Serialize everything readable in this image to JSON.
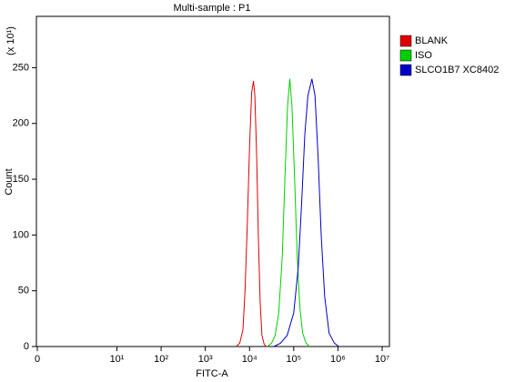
{
  "chart_data": {
    "type": "line",
    "title": "Multi-sample : P1",
    "x_label": "FITC-A",
    "y_label": "Count",
    "y_multiplier": "(x 10¹)",
    "xscale": "asinh",
    "xlim": [
      0,
      10000000
    ],
    "xticks": [
      0,
      {
        "value": 10,
        "label": "10¹"
      },
      {
        "value": 100,
        "label": "10²"
      },
      {
        "value": 1000,
        "label": "10³"
      },
      {
        "value": 10000,
        "label": "10⁴"
      },
      {
        "value": 100000,
        "label": "10⁵"
      },
      {
        "value": 1000000,
        "label": "10⁶"
      },
      {
        "value": 10000000,
        "label": "10⁷"
      }
    ],
    "ylim": [
      0,
      296
    ],
    "yticks": [
      0,
      50,
      100,
      150,
      200,
      250
    ],
    "legend": "right",
    "series": [
      {
        "name": "BLANK",
        "color": "#e00000",
        "x": [
          5000,
          6000,
          7100,
          7900,
          8900,
          10000,
          11200,
          12300,
          13200,
          14500,
          15800,
          17400,
          19100,
          21400,
          24000
        ],
        "values": [
          0,
          3,
          15,
          50,
          110,
          180,
          228,
          238,
          225,
          170,
          100,
          40,
          10,
          2,
          0
        ]
      },
      {
        "name": "ISO",
        "color": "#00d000",
        "x": [
          25100,
          31600,
          38000,
          45700,
          55000,
          63100,
          72400,
          81300,
          91200,
          104700,
          120200,
          138000,
          158500,
          190500,
          229100
        ],
        "values": [
          0,
          3,
          10,
          30,
          80,
          150,
          215,
          240,
          215,
          150,
          80,
          35,
          12,
          3,
          0
        ]
      },
      {
        "name": "SLCO1B7 XC8402",
        "color": "#0000c8",
        "x": [
          35500,
          50100,
          70800,
          100000,
          125900,
          151400,
          177800,
          208900,
          257000,
          302000,
          354800,
          416900,
          501200,
          631000,
          831800,
          1047000
        ],
        "values": [
          0,
          3,
          10,
          30,
          70,
          130,
          190,
          225,
          240,
          225,
          170,
          100,
          45,
          12,
          3,
          0
        ]
      }
    ]
  }
}
